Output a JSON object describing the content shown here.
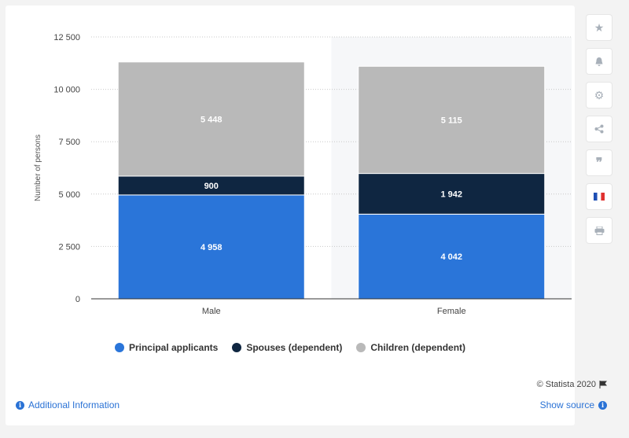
{
  "chart_data": {
    "type": "bar",
    "stacked": true,
    "categories": [
      "Male",
      "Female"
    ],
    "series": [
      {
        "name": "Principal applicants",
        "values": [
          4958,
          4042
        ],
        "labels": [
          "4 958",
          "4 042"
        ],
        "color": "#2a75d9"
      },
      {
        "name": "Spouses (dependent)",
        "values": [
          900,
          1942
        ],
        "labels": [
          "900",
          "1 942"
        ],
        "color": "#0f2641"
      },
      {
        "name": "Children (dependent)",
        "values": [
          5448,
          5115
        ],
        "labels": [
          "5 448",
          "5 115"
        ],
        "color": "#b9b9b9"
      }
    ],
    "ylabel": "Number of persons",
    "ylim": [
      0,
      12500
    ],
    "yticks": [
      0,
      2500,
      5000,
      7500,
      10000,
      12500
    ],
    "ytick_labels": [
      "0",
      "2 500",
      "5 000",
      "7 500",
      "10 000",
      "12 500"
    ],
    "grid": true,
    "legend_position": "bottom"
  },
  "footer": {
    "credit": "© Statista 2020",
    "additional_info": "Additional Information",
    "show_source": "Show source"
  },
  "sidebar": {
    "icons": [
      "star-icon",
      "bell-icon",
      "gear-icon",
      "share-icon",
      "quote-icon",
      "french-flag-icon",
      "print-icon"
    ]
  }
}
